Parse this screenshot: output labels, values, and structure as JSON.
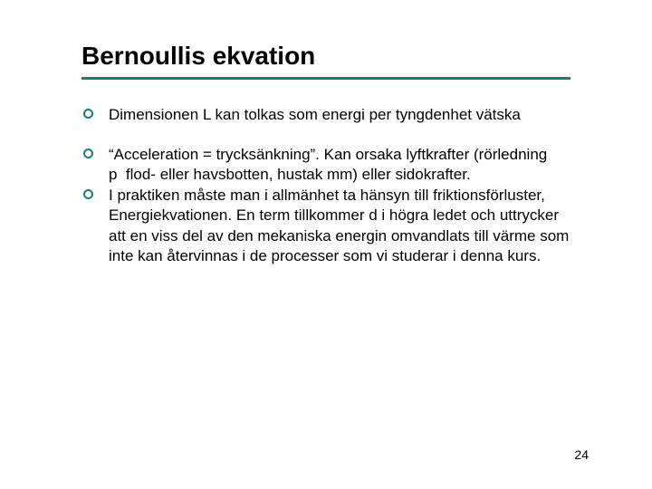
{
  "slide": {
    "title": "Bernoullis ekvation",
    "accent_color": "#1f7a72",
    "text_color": "#000000",
    "background_color": "#ffffff",
    "title_fontsize": 28,
    "body_fontsize": 17,
    "rule_width": 540,
    "rule_height": 3,
    "bullets": [
      "Dimensionen L kan tolkas som energi per tyngdenhet vätska",
      "“Acceleration = trycksänkning”. Kan orsaka lyftkrafter (rörledning p  flod- eller havsbotten, hustak mm) eller sidokrafter.",
      "I praktiken måste man i allmänhet ta hänsyn till friktionsförluster, Energiekvationen. En term tillkommer d i högra ledet och uttrycker att en viss del av den mekaniska energin omvandlats till värme som inte kan återvinnas i de processer som vi studerar i denna kurs."
    ],
    "page_number": "24"
  }
}
